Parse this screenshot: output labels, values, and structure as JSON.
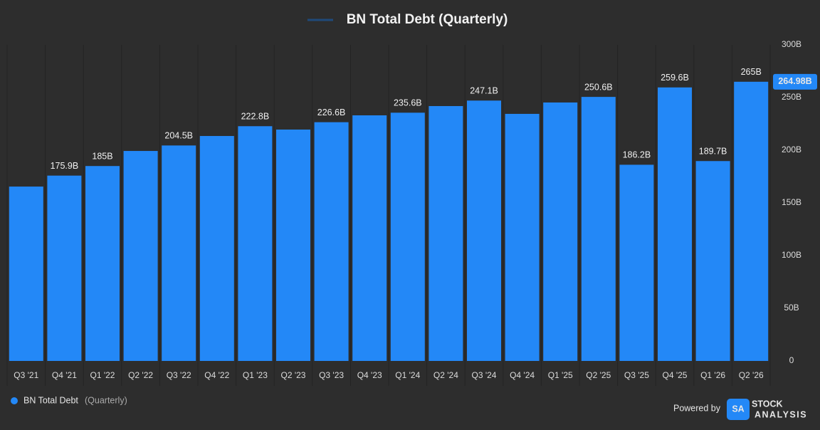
{
  "chart_data": {
    "type": "bar",
    "title": "BN Total Debt (Quarterly)",
    "categories": [
      "Q3 '21",
      "Q4 '21",
      "Q1 '22",
      "Q2 '22",
      "Q3 '22",
      "Q4 '22",
      "Q1 '23",
      "Q2 '23",
      "Q3 '23",
      "Q4 '23",
      "Q1 '24",
      "Q2 '24",
      "Q3 '24",
      "Q4 '24",
      "Q1 '25",
      "Q2 '25",
      "Q3 '25",
      "Q4 '25",
      "Q1 '26",
      "Q2 '26"
    ],
    "series": [
      {
        "name": "BN Total Debt",
        "color": "#2388f7",
        "values": [
          165.5,
          175.9,
          185,
          199.3,
          204.5,
          213.5,
          222.8,
          219.6,
          226.6,
          233.1,
          235.6,
          241.9,
          247.1,
          234.5,
          245.3,
          250.6,
          186.2,
          259.6,
          189.7,
          264.98
        ],
        "value_labels": [
          null,
          "175.9B",
          "185B",
          null,
          "204.5B",
          null,
          "222.8B",
          null,
          "226.6B",
          null,
          "235.6B",
          null,
          "247.1B",
          null,
          null,
          "250.6B",
          "186.2B",
          "259.6B",
          "189.7B",
          "265B"
        ]
      }
    ],
    "legend_suffix": "(Quarterly)",
    "last_value_label": "264.98B",
    "ylim": [
      0,
      300
    ],
    "yticks": [
      0,
      {
        "value": 50,
        "label": "50B"
      },
      {
        "value": 100,
        "label": "100B"
      },
      {
        "value": 150,
        "label": "150B"
      },
      {
        "value": 200,
        "label": "200B"
      },
      {
        "value": 250,
        "label": "250B"
      },
      {
        "value": 300,
        "label": "300B"
      }
    ],
    "grid": false
  },
  "branding": {
    "powered_by": "Powered by",
    "logo": "SA",
    "name": "STOCK",
    "sub": "ANALYSIS"
  }
}
